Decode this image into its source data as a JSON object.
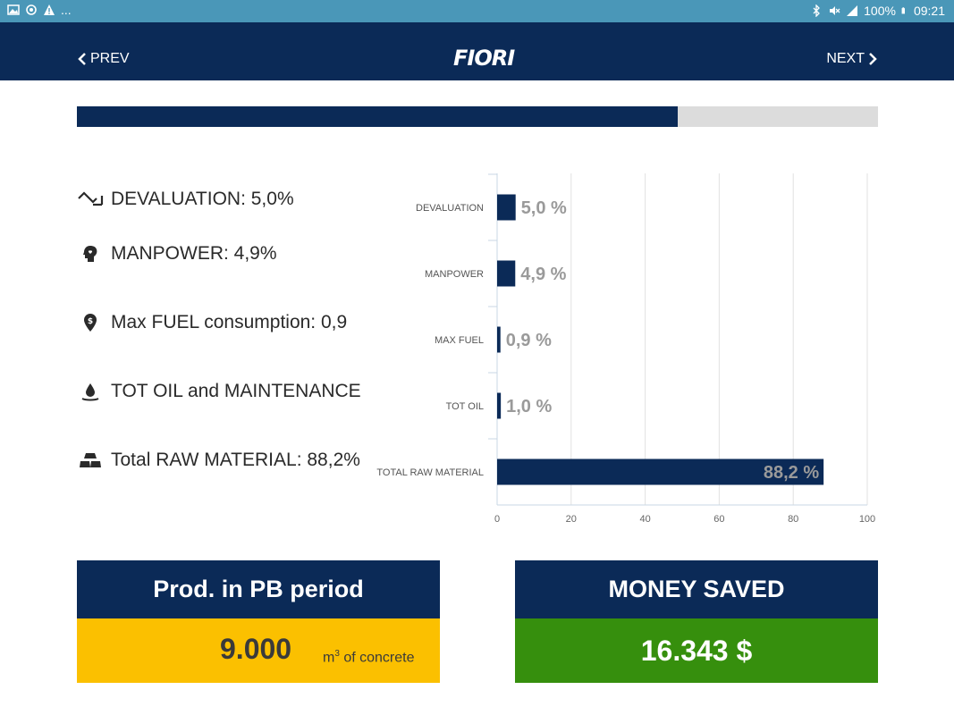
{
  "status_bar": {
    "left_icons": [
      "image-icon",
      "sync-icon",
      "warning-icon"
    ],
    "more": "...",
    "battery": "100%",
    "time": "09:21",
    "right_icons": [
      "bluetooth-icon",
      "mute-icon",
      "signal-icon",
      "battery-icon"
    ]
  },
  "header": {
    "prev_label": "PREV",
    "next_label": "NEXT",
    "logo_text": "FIORI"
  },
  "progress": {
    "value": 0.75
  },
  "costs": [
    {
      "icon": "devaluation-icon",
      "label": "DEVALUATION: 5,0%"
    },
    {
      "icon": "manpower-icon",
      "label": "MANPOWER: 4,9%"
    },
    {
      "icon": "fuel-icon",
      "label": "Max FUEL consumption: 0,9"
    },
    {
      "icon": "oil-icon",
      "label": "TOT OIL and MAINTENANCE"
    },
    {
      "icon": "raw-material-icon",
      "label": "Total RAW MATERIAL: 88,2%"
    }
  ],
  "chart_data": {
    "type": "bar",
    "orientation": "horizontal",
    "categories": [
      "DEVALUATION",
      "MANPOWER",
      "MAX FUEL",
      "TOT OIL",
      "TOTAL RAW MATERIAL"
    ],
    "values": [
      5.0,
      4.9,
      0.9,
      1.0,
      88.2
    ],
    "data_labels": [
      "5,0 %",
      "4,9 %",
      "0,9 %",
      "1,0 %",
      "88,2 %"
    ],
    "xlim": [
      0,
      100
    ],
    "xticks": [
      0,
      20,
      40,
      60,
      80,
      100
    ],
    "grid": true,
    "bar_color": "#0b2a57",
    "label_color": "#9a9a9a"
  },
  "prod_box": {
    "title": "Prod. in PB period",
    "value": "9.000",
    "unit_prefix": "m",
    "unit_sup": "3",
    "unit_suffix": " of concrete"
  },
  "money_box": {
    "title": "MONEY SAVED",
    "value": "16.343 $"
  },
  "colors": {
    "navy": "#0b2a57",
    "yellow": "#fbc000",
    "green": "#368f0d",
    "status_bar": "#4a97b8"
  }
}
